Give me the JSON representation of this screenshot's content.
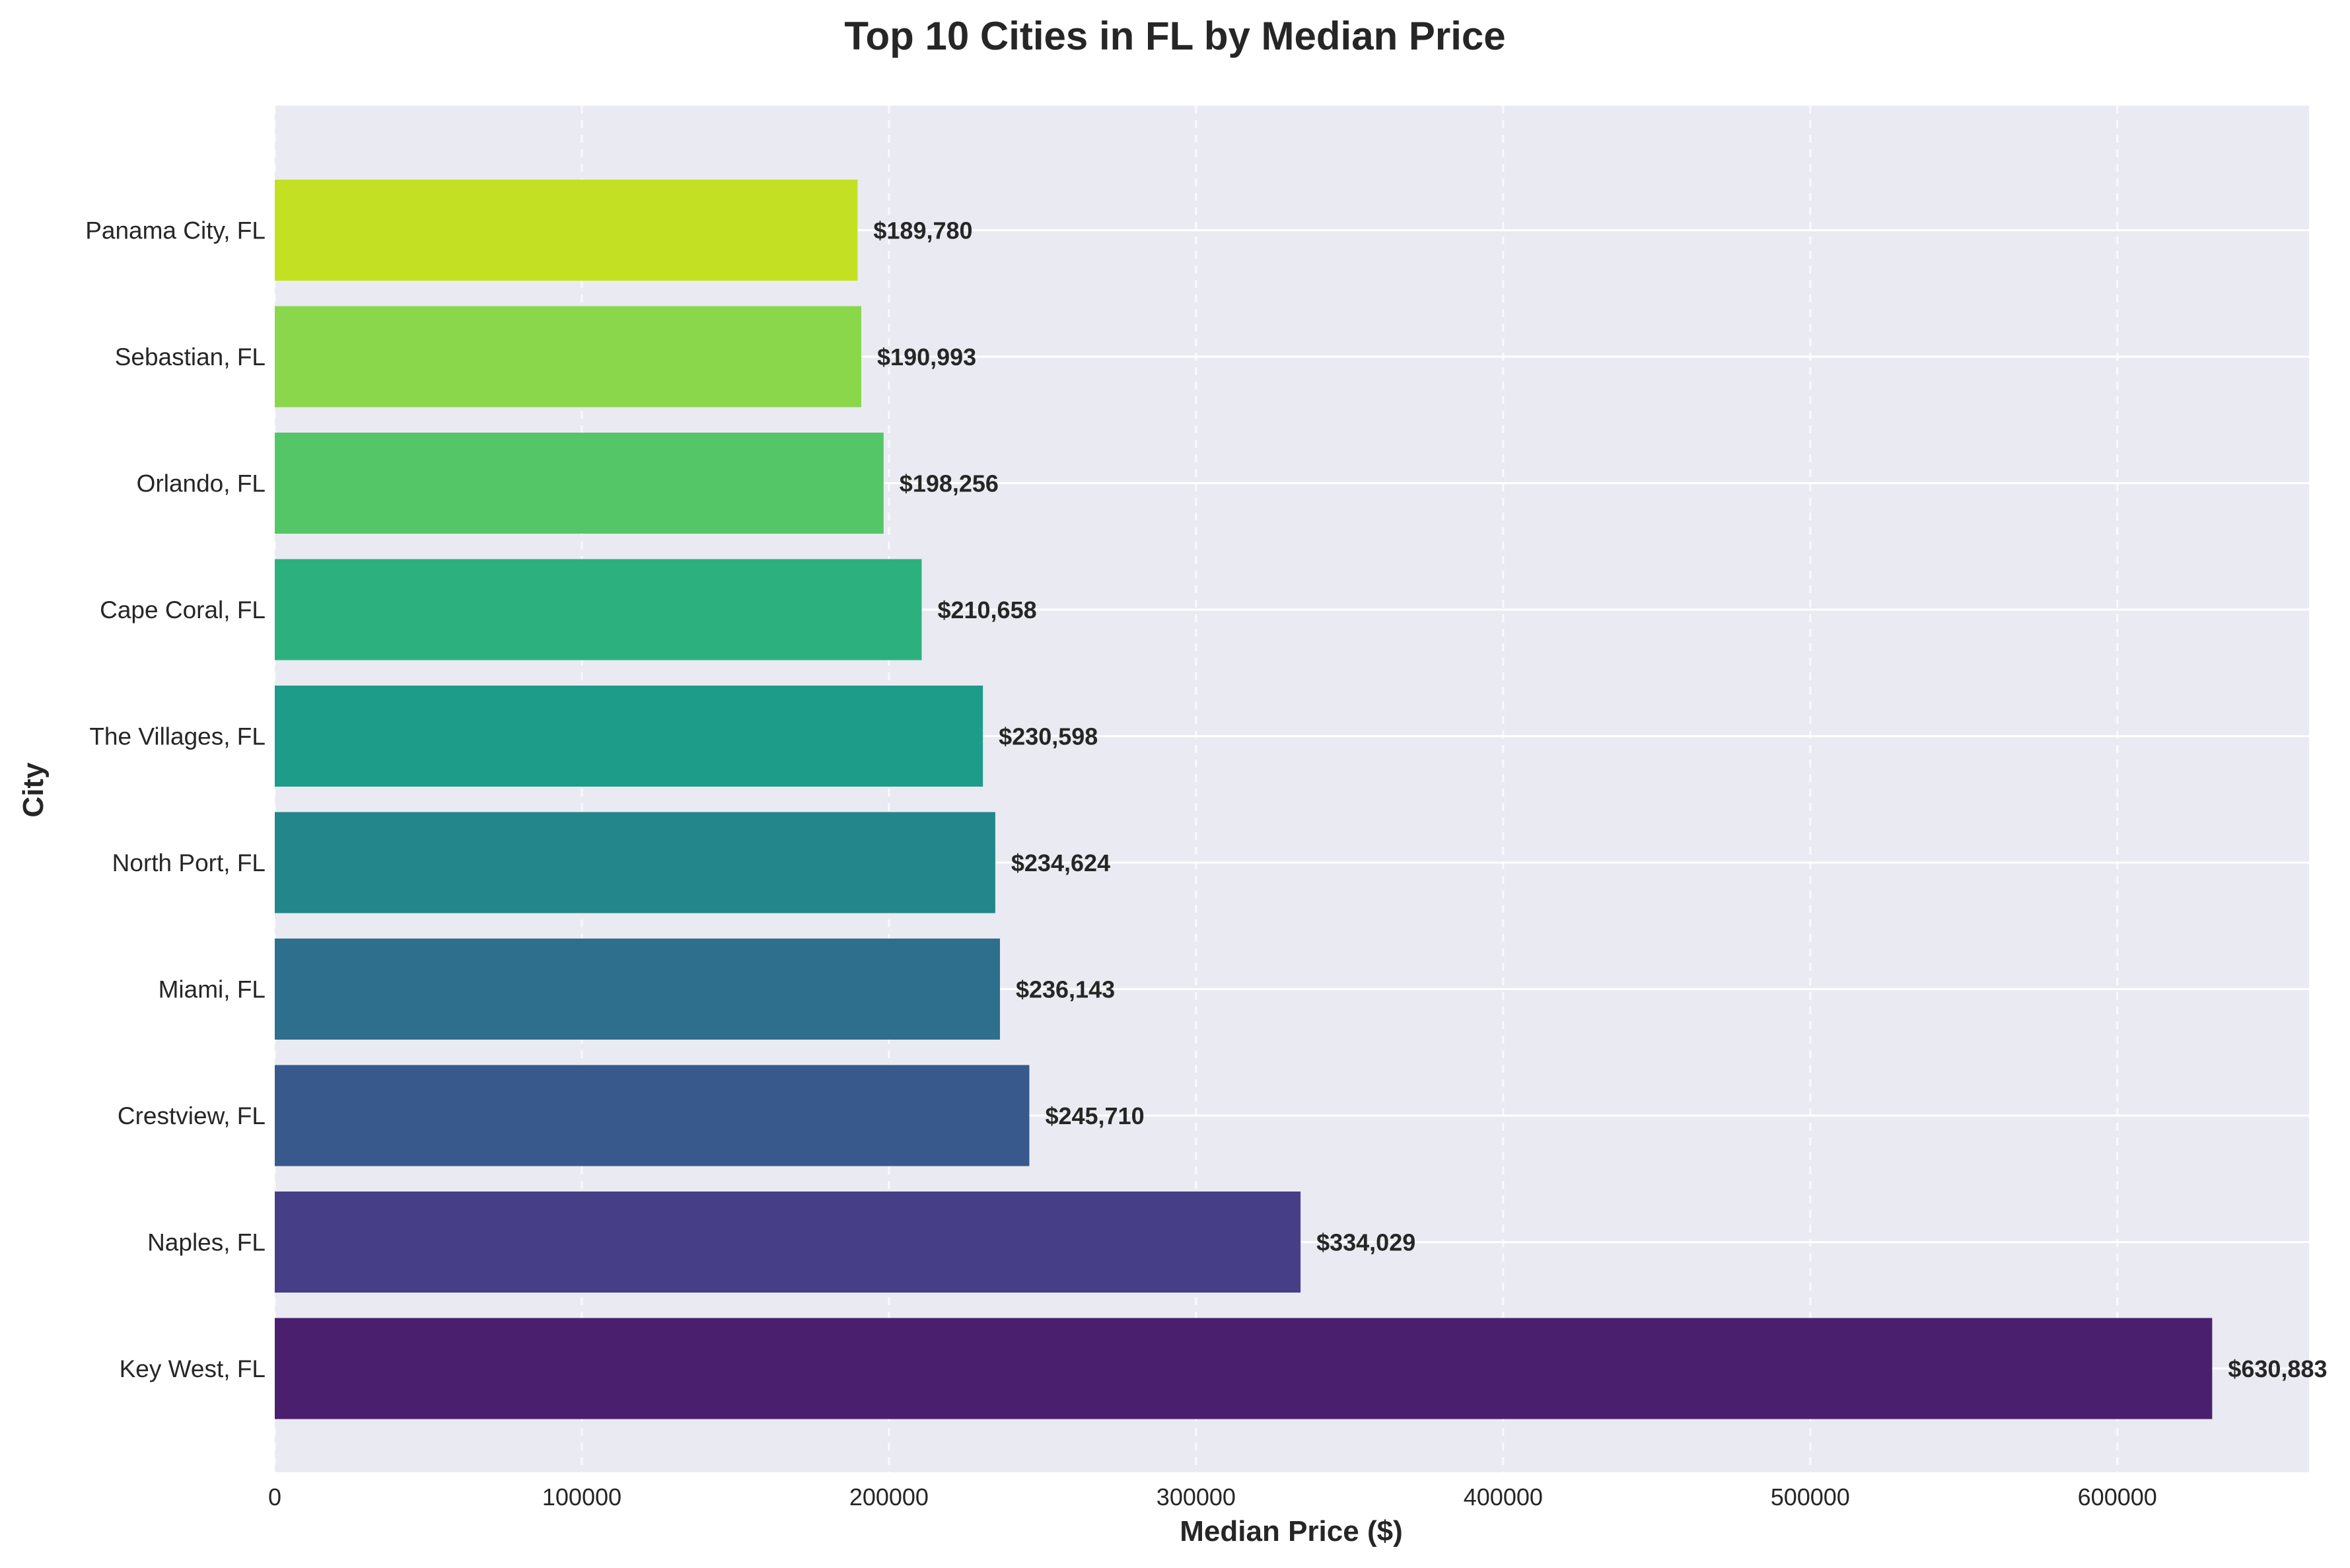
{
  "chart_data": {
    "type": "bar",
    "orientation": "horizontal",
    "title": "Top 10 Cities in FL by Median Price",
    "xlabel": "Median Price ($)",
    "ylabel": "City",
    "xlim": [
      0,
      662427
    ],
    "x_ticks": [
      0,
      100000,
      200000,
      300000,
      400000,
      500000,
      600000
    ],
    "grid": true,
    "legend": false,
    "categories": [
      "Key West, FL",
      "Naples, FL",
      "Crestview, FL",
      "Miami, FL",
      "North Port, FL",
      "The Villages, FL",
      "Cape Coral, FL",
      "Orlando, FL",
      "Sebastian, FL",
      "Panama City, FL"
    ],
    "values": [
      630883,
      334029,
      245710,
      236143,
      234624,
      230598,
      210658,
      198256,
      190993,
      189780
    ],
    "value_labels": [
      "$630,883",
      "$334,029",
      "$245,710",
      "$236,143",
      "$234,624",
      "$230,598",
      "$210,658",
      "$198,256",
      "$190,993",
      "$189,780"
    ],
    "colors": [
      "#4a1f6e",
      "#463f87",
      "#38598c",
      "#2d6f8d",
      "#23868b",
      "#1e9c8a",
      "#2cb17e",
      "#55c667",
      "#8bd74c",
      "#c4e023"
    ],
    "background_color": "#eaeaf2",
    "grid_color": "#ffffff"
  }
}
